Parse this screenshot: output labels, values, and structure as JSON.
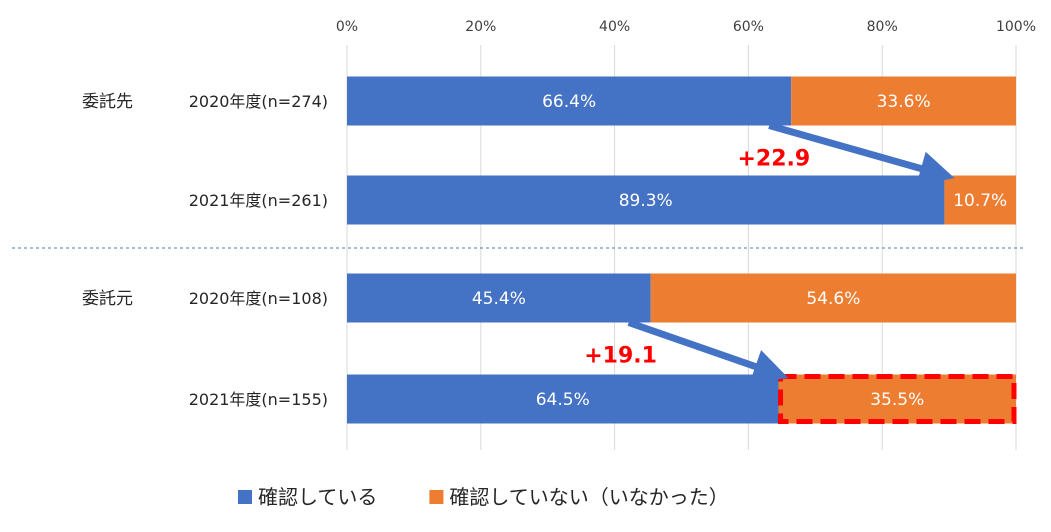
{
  "chart_data": {
    "type": "bar",
    "orientation": "horizontal",
    "stacked": true,
    "xlim": [
      0,
      100
    ],
    "x_ticks": [
      "0%",
      "20%",
      "40%",
      "60%",
      "80%",
      "100%"
    ],
    "grid": true,
    "legend_position": "bottom",
    "groups": [
      {
        "label": "委託先",
        "rows": [
          {
            "label": "2020年度(n=274)",
            "values": [
              66.4,
              33.6
            ],
            "value_labels": [
              "66.4%",
              "33.6%"
            ]
          },
          {
            "label": "2021年度(n=261)",
            "values": [
              89.3,
              10.7
            ],
            "value_labels": [
              "89.3%",
              "10.7%"
            ]
          }
        ],
        "change_label": "+22.9"
      },
      {
        "label": "委託元",
        "rows": [
          {
            "label": "2020年度(n=108)",
            "values": [
              45.4,
              54.6
            ],
            "value_labels": [
              "45.4%",
              "54.6%"
            ]
          },
          {
            "label": "2021年度(n=155)",
            "values": [
              64.5,
              35.5
            ],
            "value_labels": [
              "64.5%",
              "35.5%"
            ]
          }
        ],
        "change_label": "+19.1"
      }
    ],
    "series": [
      {
        "name": "確認している",
        "color": "#4472c4"
      },
      {
        "name": "確認していない（いなかった）",
        "color": "#ed7d31"
      }
    ],
    "highlight": {
      "group": 1,
      "row": 1,
      "series": 1,
      "color": "#ff0000"
    },
    "separator_color": "#4a7ea8"
  }
}
